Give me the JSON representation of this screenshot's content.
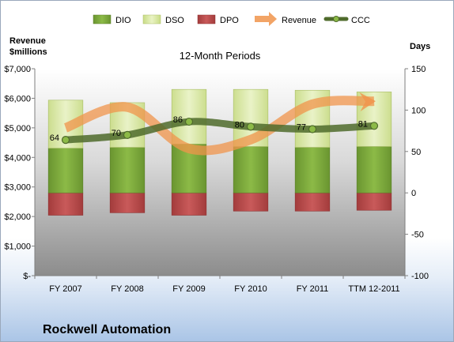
{
  "chart_data": {
    "type": "bar",
    "title": "12-Month Periods",
    "company": "Rockwell Automation",
    "y_left_label_line1": "Revenue",
    "y_left_label_line2": "$millions",
    "y_right_label": "Days",
    "categories": [
      "FY 2007",
      "FY 2008",
      "FY 2009",
      "FY 2010",
      "FY 2011",
      "TTM 12-2011"
    ],
    "left_axis": {
      "ylim": [
        0,
        7000
      ],
      "ticks": [
        0,
        1000,
        2000,
        3000,
        4000,
        5000,
        6000,
        7000
      ],
      "tick_labels": [
        "$-",
        "$1,000",
        "$2,000",
        "$3,000",
        "$4,000",
        "$5,000",
        "$6,000",
        "$7,000"
      ]
    },
    "right_axis": {
      "ylim": [
        -100,
        150
      ],
      "ticks": [
        -100,
        -50,
        0,
        50,
        100,
        150
      ],
      "tick_labels": [
        "-100",
        "-50",
        "0",
        "50",
        "100",
        "150"
      ]
    },
    "series": [
      {
        "name": "DIO",
        "axis": "right",
        "kind": "bar",
        "color": "#7aa43a",
        "values": [
          54,
          55,
          59,
          56,
          55,
          56
        ]
      },
      {
        "name": "DSO",
        "axis": "right",
        "kind": "bar",
        "color": "#dbeaa8",
        "values": [
          58,
          54,
          66,
          69,
          69,
          66
        ]
      },
      {
        "name": "DPO",
        "axis": "right",
        "kind": "bar",
        "color": "#b84a4a",
        "values": [
          -27,
          -24,
          -27,
          -22,
          -22,
          -21
        ]
      },
      {
        "name": "Revenue",
        "axis": "left",
        "kind": "line",
        "color": "#f0944b",
        "values": [
          5000,
          5700,
          4300,
          4600,
          5800,
          5900
        ]
      },
      {
        "name": "CCC",
        "axis": "right",
        "kind": "line",
        "color": "#4f6b2c",
        "values": [
          64,
          70,
          86,
          80,
          77,
          81
        ],
        "labels": [
          "64",
          "70",
          "86",
          "80",
          "77",
          "81"
        ]
      }
    ],
    "legend_position": "top",
    "grid": false
  }
}
